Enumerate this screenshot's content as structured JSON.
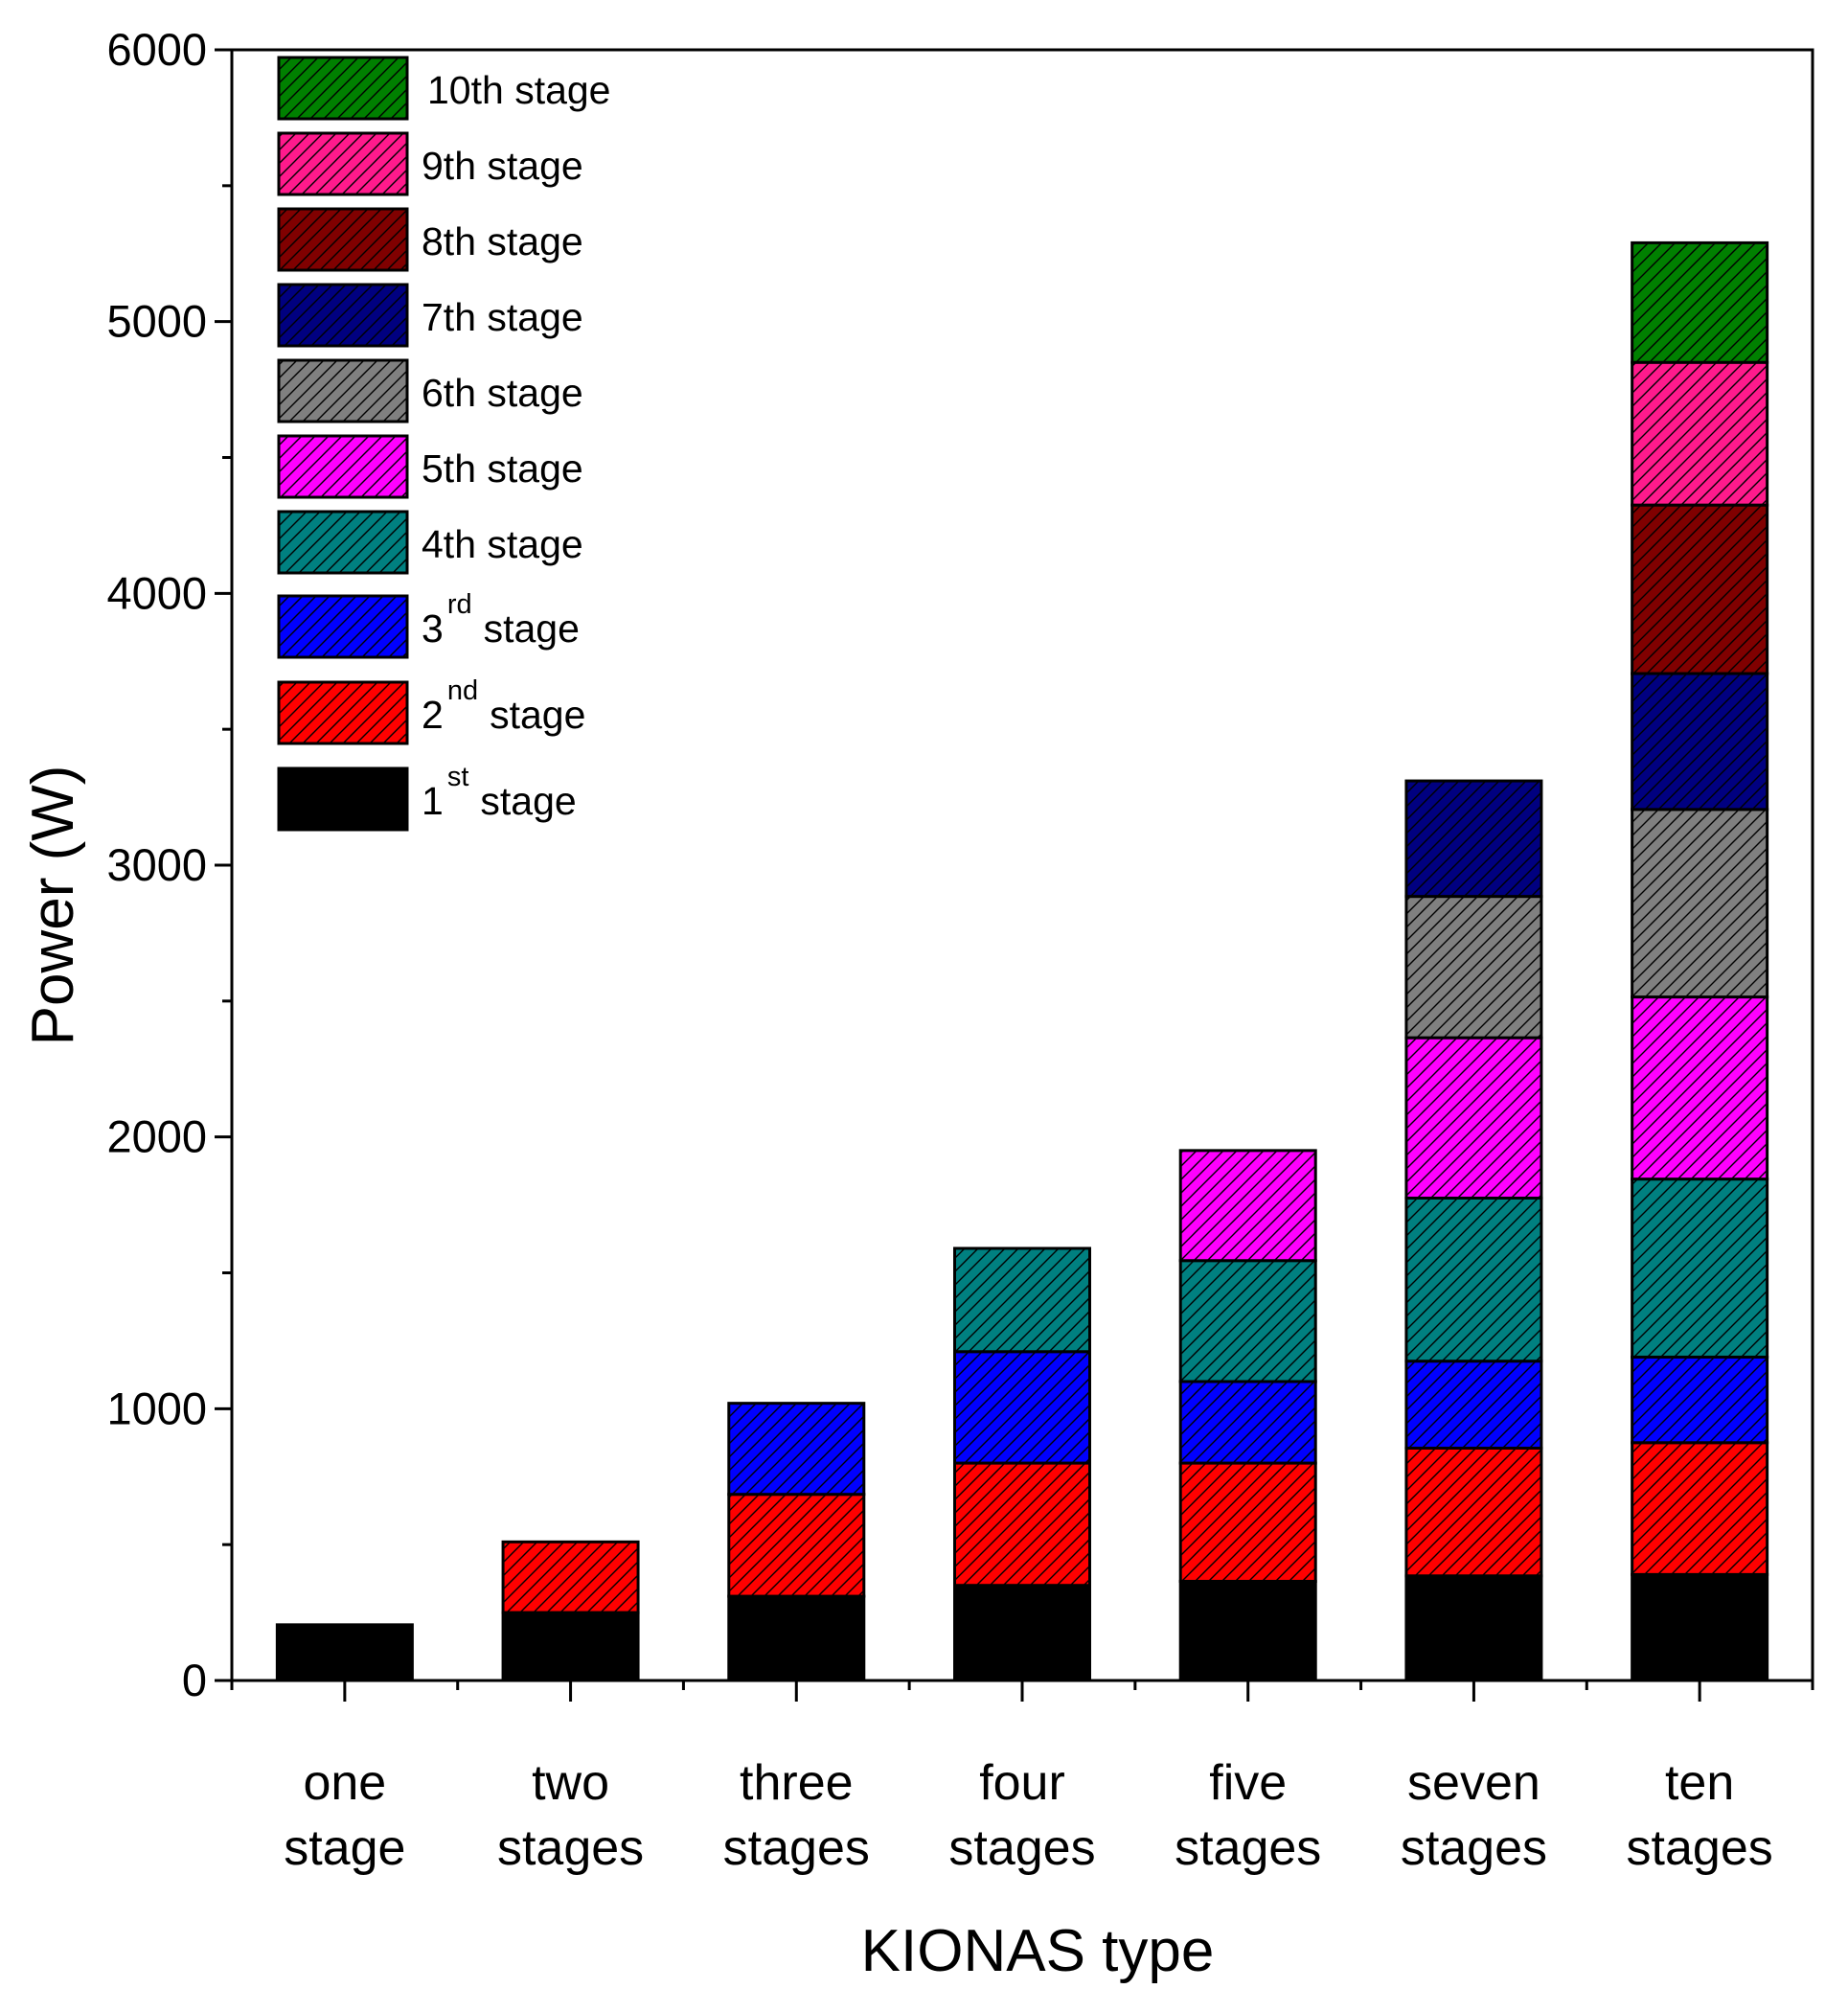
{
  "chart_data": {
    "type": "bar",
    "stacked": true,
    "xlabel": "KIONAS type",
    "ylabel": "Power (W)",
    "ylim": [
      0,
      6000
    ],
    "yticks": [
      0,
      1000,
      2000,
      3000,
      4000,
      5000,
      6000
    ],
    "categories": [
      [
        "one",
        "stage"
      ],
      [
        "two",
        "stages"
      ],
      [
        "three",
        "stages"
      ],
      [
        "four",
        "stages"
      ],
      [
        "five",
        "stages"
      ],
      [
        "seven",
        "stages"
      ],
      [
        "ten",
        "stages"
      ]
    ],
    "series": [
      {
        "name": "1st stage",
        "base": "1",
        "sup": "st",
        "suffix": "stage",
        "color": "#000000",
        "hatch": false,
        "values": [
          205,
          250,
          310,
          350,
          365,
          385,
          390
        ]
      },
      {
        "name": "2nd stage",
        "base": "2",
        "sup": "nd",
        "suffix": "stage",
        "color": "#ff0000",
        "hatch": true,
        "values": [
          null,
          260,
          375,
          450,
          435,
          470,
          485
        ]
      },
      {
        "name": "3rd stage",
        "base": "3",
        "sup": "rd",
        "suffix": "stage",
        "color": "#0000ff",
        "hatch": true,
        "values": [
          null,
          null,
          335,
          410,
          300,
          320,
          315
        ]
      },
      {
        "name": "4th stage",
        "base": "4th stage",
        "sup": "",
        "suffix": "",
        "color": "#008080",
        "hatch": true,
        "values": [
          null,
          null,
          null,
          380,
          445,
          600,
          655
        ]
      },
      {
        "name": "5th stage",
        "base": "5th stage",
        "sup": "",
        "suffix": "",
        "color": "#ff00ff",
        "hatch": true,
        "values": [
          null,
          null,
          null,
          null,
          405,
          590,
          670
        ]
      },
      {
        "name": "6th stage",
        "base": "6th stage",
        "sup": "",
        "suffix": "",
        "color": "#808080",
        "hatch": true,
        "values": [
          null,
          null,
          null,
          null,
          null,
          520,
          690
        ]
      },
      {
        "name": "7th stage",
        "base": "7th stage",
        "sup": "",
        "suffix": "",
        "color": "#000080",
        "hatch": true,
        "values": [
          null,
          null,
          null,
          null,
          null,
          425,
          500
        ]
      },
      {
        "name": "8th stage",
        "base": "8th stage",
        "sup": "",
        "suffix": "",
        "color": "#800000",
        "hatch": true,
        "values": [
          null,
          null,
          null,
          null,
          null,
          null,
          620
        ]
      },
      {
        "name": "9th stage",
        "base": "9th stage",
        "sup": "",
        "suffix": "",
        "color": "#ff1a8c",
        "hatch": true,
        "values": [
          null,
          null,
          null,
          null,
          null,
          null,
          525
        ]
      },
      {
        "name": "10th stage",
        "base": "10th stage",
        "sup": "",
        "suffix": "",
        "color": "#008000",
        "hatch": true,
        "values": [
          null,
          null,
          null,
          null,
          null,
          null,
          440
        ]
      }
    ],
    "legend": {
      "placement": "top-left",
      "order": "reverse"
    }
  }
}
